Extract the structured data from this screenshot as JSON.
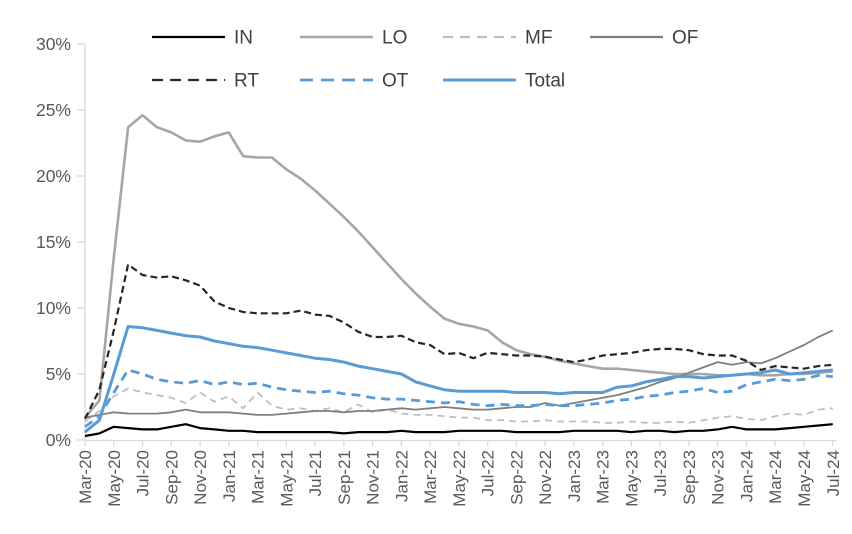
{
  "chart_data": {
    "type": "line",
    "title": "",
    "xlabel": "",
    "ylabel": "",
    "ylim": [
      0,
      30
    ],
    "grid": "off",
    "legend_position": "top",
    "axis_color": "#d9d9d9",
    "tick_label_color": "#595959",
    "legend_label_color": "#404040",
    "y_ticks": [
      {
        "value": 0,
        "label": "0%"
      },
      {
        "value": 5,
        "label": "5%"
      },
      {
        "value": 10,
        "label": "10%"
      },
      {
        "value": 15,
        "label": "15%"
      },
      {
        "value": 20,
        "label": "20%"
      },
      {
        "value": 25,
        "label": "25%"
      },
      {
        "value": 30,
        "label": "30%"
      }
    ],
    "x_labels": [
      "Mar-20",
      "Apr-20",
      "May-20",
      "Jun-20",
      "Jul-20",
      "Aug-20",
      "Sep-20",
      "Oct-20",
      "Nov-20",
      "Dec-20",
      "Jan-21",
      "Feb-21",
      "Mar-21",
      "Apr-21",
      "May-21",
      "Jun-21",
      "Jul-21",
      "Aug-21",
      "Sep-21",
      "Oct-21",
      "Nov-21",
      "Dec-21",
      "Jan-22",
      "Feb-22",
      "Mar-22",
      "Apr-22",
      "May-22",
      "Jun-22",
      "Jul-22",
      "Aug-22",
      "Sep-22",
      "Oct-22",
      "Nov-22",
      "Dec-22",
      "Jan-23",
      "Feb-23",
      "Mar-23",
      "Apr-23",
      "May-23",
      "Jun-23",
      "Jul-23",
      "Aug-23",
      "Sep-23",
      "Oct-23",
      "Nov-23",
      "Dec-23",
      "Jan-24",
      "Feb-24",
      "Mar-24",
      "Apr-24",
      "May-24",
      "Jun-24",
      "Jul-24"
    ],
    "x_tick_every": 2,
    "series": [
      {
        "name": "IN",
        "color": "#000000",
        "style": "solid",
        "width": 2.2,
        "dash": null,
        "legend_dash": null,
        "values": [
          0.3,
          0.5,
          1.0,
          0.9,
          0.8,
          0.8,
          1.0,
          1.2,
          0.9,
          0.8,
          0.7,
          0.7,
          0.6,
          0.6,
          0.6,
          0.6,
          0.6,
          0.6,
          0.5,
          0.6,
          0.6,
          0.6,
          0.7,
          0.6,
          0.6,
          0.6,
          0.7,
          0.7,
          0.7,
          0.7,
          0.6,
          0.6,
          0.6,
          0.6,
          0.7,
          0.7,
          0.7,
          0.7,
          0.6,
          0.7,
          0.7,
          0.6,
          0.7,
          0.7,
          0.8,
          1.0,
          0.8,
          0.8,
          0.8,
          0.9,
          1.0,
          1.1,
          1.2
        ]
      },
      {
        "name": "LO",
        "color": "#a6a6a6",
        "style": "solid",
        "width": 2.6,
        "dash": null,
        "legend_dash": null,
        "values": [
          1.7,
          3.0,
          13.8,
          23.7,
          24.6,
          23.7,
          23.3,
          22.7,
          22.6,
          23.0,
          23.3,
          21.5,
          21.4,
          21.4,
          20.5,
          19.8,
          18.9,
          17.9,
          16.9,
          15.8,
          14.6,
          13.4,
          12.2,
          11.1,
          10.1,
          9.2,
          8.8,
          8.6,
          8.3,
          7.4,
          6.8,
          6.5,
          6.3,
          6.0,
          5.8,
          5.6,
          5.4,
          5.4,
          5.3,
          5.2,
          5.1,
          5.0,
          5.0,
          5.0,
          4.9,
          4.9,
          5.0,
          4.9,
          4.9,
          5.0,
          5.0,
          5.1,
          5.2
        ]
      },
      {
        "name": "MF",
        "color": "#bfbfbf",
        "style": "dashed",
        "width": 1.8,
        "dash": "7 5",
        "legend_dash": "10 7",
        "values": [
          1.4,
          2.2,
          3.3,
          3.9,
          3.6,
          3.4,
          3.2,
          2.8,
          3.6,
          2.9,
          3.3,
          2.4,
          3.6,
          2.6,
          2.3,
          2.4,
          2.2,
          2.4,
          2.1,
          2.7,
          2.1,
          2.3,
          2.0,
          1.9,
          1.9,
          1.8,
          1.7,
          1.7,
          1.5,
          1.5,
          1.4,
          1.4,
          1.5,
          1.4,
          1.4,
          1.4,
          1.3,
          1.3,
          1.4,
          1.3,
          1.3,
          1.4,
          1.3,
          1.5,
          1.7,
          1.8,
          1.6,
          1.5,
          1.8,
          2.0,
          1.9,
          2.3,
          2.4
        ]
      },
      {
        "name": "OF",
        "color": "#7f7f7f",
        "style": "solid",
        "width": 1.8,
        "dash": null,
        "legend_dash": null,
        "values": [
          1.7,
          1.9,
          2.1,
          2.0,
          2.0,
          2.0,
          2.1,
          2.3,
          2.1,
          2.1,
          2.1,
          2.0,
          1.9,
          1.9,
          2.0,
          2.1,
          2.2,
          2.2,
          2.1,
          2.2,
          2.2,
          2.3,
          2.4,
          2.3,
          2.4,
          2.5,
          2.4,
          2.3,
          2.3,
          2.4,
          2.5,
          2.5,
          2.8,
          2.6,
          2.8,
          3.0,
          3.2,
          3.4,
          3.7,
          4.0,
          4.4,
          4.7,
          5.1,
          5.5,
          5.9,
          5.7,
          5.9,
          5.8,
          6.2,
          6.7,
          7.2,
          7.8,
          8.3
        ]
      },
      {
        "name": "RT",
        "color": "#262626",
        "style": "dashed",
        "width": 2.2,
        "dash": "7 4",
        "legend_dash": "11 7",
        "values": [
          1.6,
          3.8,
          8.3,
          13.3,
          12.5,
          12.3,
          12.4,
          12.1,
          11.7,
          10.5,
          10.0,
          9.7,
          9.6,
          9.6,
          9.6,
          9.8,
          9.5,
          9.4,
          8.9,
          8.2,
          7.8,
          7.8,
          7.9,
          7.4,
          7.2,
          6.5,
          6.6,
          6.2,
          6.6,
          6.5,
          6.4,
          6.4,
          6.3,
          6.1,
          5.9,
          6.1,
          6.4,
          6.5,
          6.6,
          6.8,
          6.9,
          6.9,
          6.8,
          6.5,
          6.4,
          6.4,
          6.0,
          5.3,
          5.6,
          5.5,
          5.4,
          5.6,
          5.7
        ]
      },
      {
        "name": "OT",
        "color": "#5b9bd5",
        "style": "dashed",
        "width": 2.8,
        "dash": "9 6",
        "legend_dash": "13 8",
        "values": [
          1.0,
          1.8,
          3.6,
          5.3,
          5.0,
          4.6,
          4.4,
          4.3,
          4.5,
          4.2,
          4.4,
          4.2,
          4.3,
          4.0,
          3.8,
          3.7,
          3.6,
          3.7,
          3.5,
          3.4,
          3.2,
          3.1,
          3.1,
          3.0,
          2.9,
          2.8,
          2.9,
          2.7,
          2.6,
          2.7,
          2.6,
          2.6,
          2.7,
          2.6,
          2.6,
          2.7,
          2.8,
          3.0,
          3.1,
          3.3,
          3.4,
          3.6,
          3.7,
          3.9,
          3.6,
          3.7,
          4.2,
          4.4,
          4.6,
          4.5,
          4.6,
          4.9,
          4.8
        ]
      },
      {
        "name": "Total",
        "color": "#5b9bd5",
        "style": "solid",
        "width": 3.0,
        "dash": null,
        "legend_dash": null,
        "values": [
          0.6,
          1.5,
          5.0,
          8.6,
          8.5,
          8.3,
          8.1,
          7.9,
          7.8,
          7.5,
          7.3,
          7.1,
          7.0,
          6.8,
          6.6,
          6.4,
          6.2,
          6.1,
          5.9,
          5.6,
          5.4,
          5.2,
          5.0,
          4.4,
          4.1,
          3.8,
          3.7,
          3.7,
          3.7,
          3.7,
          3.6,
          3.6,
          3.6,
          3.5,
          3.6,
          3.6,
          3.6,
          4.0,
          4.1,
          4.4,
          4.6,
          4.8,
          4.8,
          4.7,
          4.8,
          4.9,
          5.0,
          5.1,
          5.3,
          5.0,
          5.1,
          5.2,
          5.3
        ]
      }
    ],
    "legend_rows": [
      [
        "IN",
        "LO",
        "MF",
        "OF"
      ],
      [
        "RT",
        "OT",
        "Total"
      ]
    ]
  }
}
